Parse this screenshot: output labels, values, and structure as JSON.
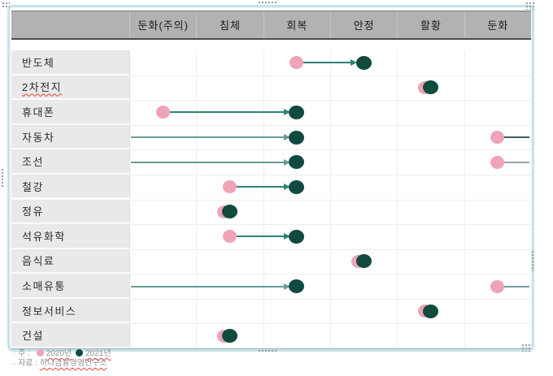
{
  "colors": {
    "pink": "#F0A3B7",
    "green": "#114A3E",
    "arrow_line": "#2E8274",
    "wrap_line": "#679B93",
    "header_bg": "#B2B2B2",
    "label_bg": "#E9E9E9",
    "row_sep": "#F2ECEC",
    "col_sep": "#EFEFEF",
    "squiggle": "#E0453A"
  },
  "chart_data": {
    "type": "scatter",
    "subtype": "dumbbell-transition-grid",
    "title": "",
    "x_categories": [
      "둔화(주의)",
      "침체",
      "회복",
      "안정",
      "활황",
      "둔화"
    ],
    "rows": [
      {
        "label": "반도체",
        "y2020": "회복",
        "y2021": "안정",
        "transition": "arrow"
      },
      {
        "label": "2차전지",
        "y2020": "활황",
        "y2021": "활황",
        "transition": "overlap",
        "misspelled": true
      },
      {
        "label": "휴대폰",
        "y2020": "둔화(주의)",
        "y2021": "회복",
        "transition": "arrow"
      },
      {
        "label": "자동차",
        "y2020": "둔화",
        "y2021": "회복",
        "transition": "wrap",
        "right_line_color": "#3F5E66"
      },
      {
        "label": "조선",
        "y2020": "둔화",
        "y2021": "회복",
        "transition": "wrap",
        "right_line_color": "#97A4A8"
      },
      {
        "label": "철강",
        "y2020": "침체",
        "y2021": "회복",
        "transition": "arrow"
      },
      {
        "label": "정유",
        "y2020": "침체",
        "y2021": "침체",
        "transition": "overlap"
      },
      {
        "label": "석유화학",
        "y2020": "침체",
        "y2021": "회복",
        "transition": "arrow"
      },
      {
        "label": "음식료",
        "y2020": "안정",
        "y2021": "안정",
        "transition": "overlap"
      },
      {
        "label": "소매유통",
        "y2020": "둔화",
        "y2021": "회복",
        "transition": "wrap",
        "right_line_color": "#6F9E96"
      },
      {
        "label": "정보서비스",
        "y2020": "활황",
        "y2021": "활황",
        "transition": "overlap"
      },
      {
        "label": "건설",
        "y2020": "침체",
        "y2021": "침체",
        "transition": "overlap"
      }
    ],
    "legend": [
      {
        "label": "2020년",
        "color": "#F0A3B7"
      },
      {
        "label": "2021년",
        "color": "#114A3E"
      }
    ],
    "legend_position": "bottom-left-caption",
    "grid": "faint"
  },
  "caption": {
    "note_prefix": "· 주 : ",
    "source_prefix": "· 자료 : ",
    "source_text": "하나금융경영연구소"
  }
}
